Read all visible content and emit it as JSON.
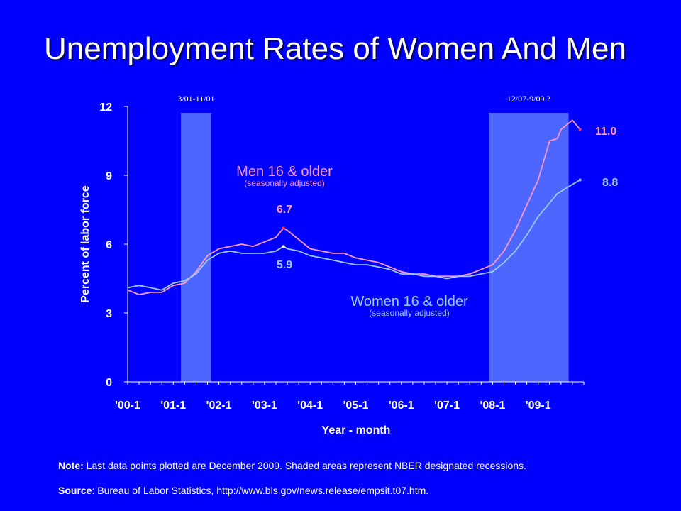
{
  "title": "Unemployment Rates of Women And Men",
  "chart_data": {
    "type": "line",
    "xlabel": "Year - month",
    "ylabel": "Percent of labor force",
    "ylim": [
      0,
      12
    ],
    "yticks": [
      0,
      3,
      6,
      9,
      12
    ],
    "xtick_labels": [
      "'00-1",
      "'01-1",
      "'02-1",
      "'03-1",
      "'04-1",
      "'05-1",
      "'06-1",
      "'07-1",
      "'08-1",
      "'09-1"
    ],
    "recessions": [
      {
        "label": "3/01-11/01",
        "start": 14,
        "end": 22
      },
      {
        "label": "12/07-9/09 ?",
        "start": 95,
        "end": 116
      }
    ],
    "series": [
      {
        "name": "Men 16 & older",
        "note": "(seasonally adjusted)",
        "color": "#ff99cc",
        "x": [
          0,
          3,
          6,
          9,
          12,
          15,
          18,
          21,
          24,
          27,
          30,
          33,
          36,
          39,
          41,
          42,
          45,
          48,
          51,
          54,
          57,
          60,
          63,
          66,
          69,
          72,
          75,
          78,
          81,
          84,
          87,
          90,
          93,
          96,
          99,
          102,
          105,
          108,
          111,
          113,
          114,
          117,
          119
        ],
        "values": [
          4.0,
          3.8,
          3.9,
          3.9,
          4.2,
          4.3,
          4.8,
          5.5,
          5.8,
          5.9,
          6.0,
          5.9,
          6.1,
          6.3,
          6.7,
          6.6,
          6.2,
          5.8,
          5.7,
          5.6,
          5.6,
          5.4,
          5.3,
          5.2,
          5.0,
          4.8,
          4.7,
          4.7,
          4.6,
          4.6,
          4.6,
          4.7,
          4.9,
          5.1,
          5.7,
          6.6,
          7.7,
          8.8,
          10.5,
          10.6,
          11.0,
          11.4,
          11.0
        ],
        "last_label": "11.0",
        "peak_label": "6.7",
        "peak_x": 41,
        "peak_y": 6.7
      },
      {
        "name": "Women 16 & older",
        "note": "(seasonally adjusted)",
        "color": "#99ccff",
        "x": [
          0,
          3,
          6,
          9,
          12,
          15,
          18,
          21,
          24,
          27,
          30,
          33,
          36,
          39,
          41,
          42,
          45,
          48,
          51,
          54,
          57,
          60,
          63,
          66,
          69,
          72,
          75,
          78,
          81,
          84,
          87,
          90,
          93,
          96,
          99,
          102,
          105,
          108,
          111,
          113,
          114,
          117,
          119
        ],
        "values": [
          4.1,
          4.2,
          4.1,
          4.0,
          4.3,
          4.4,
          4.7,
          5.3,
          5.6,
          5.7,
          5.6,
          5.6,
          5.6,
          5.7,
          5.9,
          5.8,
          5.7,
          5.5,
          5.4,
          5.3,
          5.2,
          5.1,
          5.1,
          5.0,
          4.9,
          4.7,
          4.7,
          4.6,
          4.6,
          4.5,
          4.6,
          4.6,
          4.7,
          4.8,
          5.2,
          5.7,
          6.4,
          7.2,
          7.8,
          8.2,
          8.3,
          8.6,
          8.8
        ],
        "last_label": "8.8",
        "peak_label": "5.9",
        "peak_x": 41,
        "peak_y": 5.9
      }
    ]
  },
  "note": {
    "label": "Note:",
    "text": " Last data points plotted are December 2009. Shaded areas represent NBER designated recessions."
  },
  "source": {
    "label": "Source",
    "text": ": Bureau of Labor Statistics, http://www.bls.gov/news.release/empsit.t07.htm."
  },
  "colors": {
    "background": "#0000ff",
    "recession": "#4d66ff",
    "axis": "#ffffff"
  }
}
